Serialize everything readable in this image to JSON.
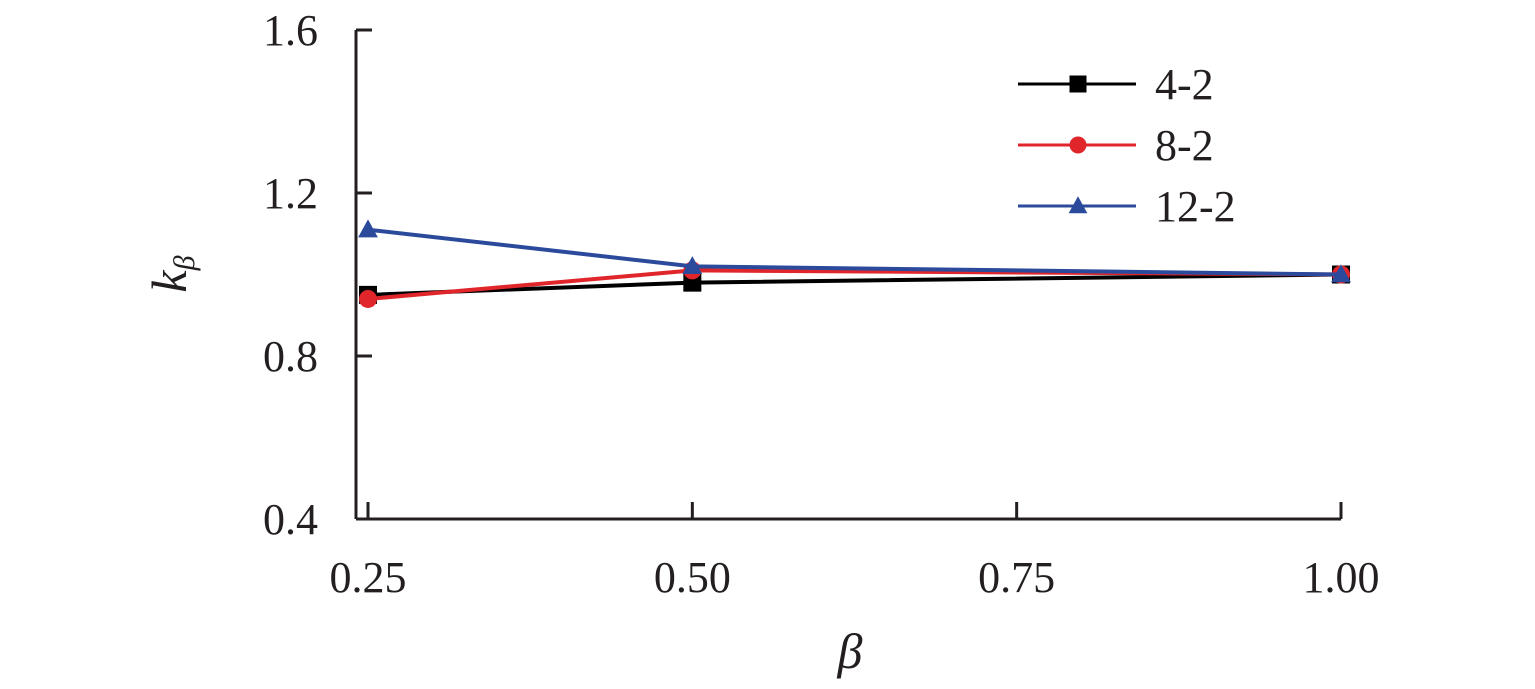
{
  "chart_data": {
    "type": "line",
    "title": "",
    "xlabel": "β",
    "ylabel": "k",
    "ylabel_subscript": "β",
    "x": [
      0.25,
      0.5,
      1.0
    ],
    "xlim": [
      0.25,
      1.0
    ],
    "ylim": [
      0.4,
      1.6
    ],
    "xticks": [
      0.25,
      0.5,
      0.75,
      1.0
    ],
    "xtick_labels": [
      "0.25",
      "0.50",
      "0.75",
      "1.00"
    ],
    "yticks": [
      0.4,
      0.8,
      1.2,
      1.6
    ],
    "ytick_labels": [
      "0.4",
      "0.8",
      "1.2",
      "1.6"
    ],
    "grid": false,
    "legend_position": "top-right",
    "series": [
      {
        "name": "4-2",
        "values": [
          0.95,
          0.98,
          1.0
        ],
        "color": "#000000",
        "marker": "square"
      },
      {
        "name": "8-2",
        "values": [
          0.94,
          1.01,
          1.0
        ],
        "color": "#e0262b",
        "marker": "circle"
      },
      {
        "name": "12-2",
        "values": [
          1.11,
          1.02,
          1.0
        ],
        "color": "#2b4a9b",
        "marker": "triangle"
      }
    ]
  }
}
